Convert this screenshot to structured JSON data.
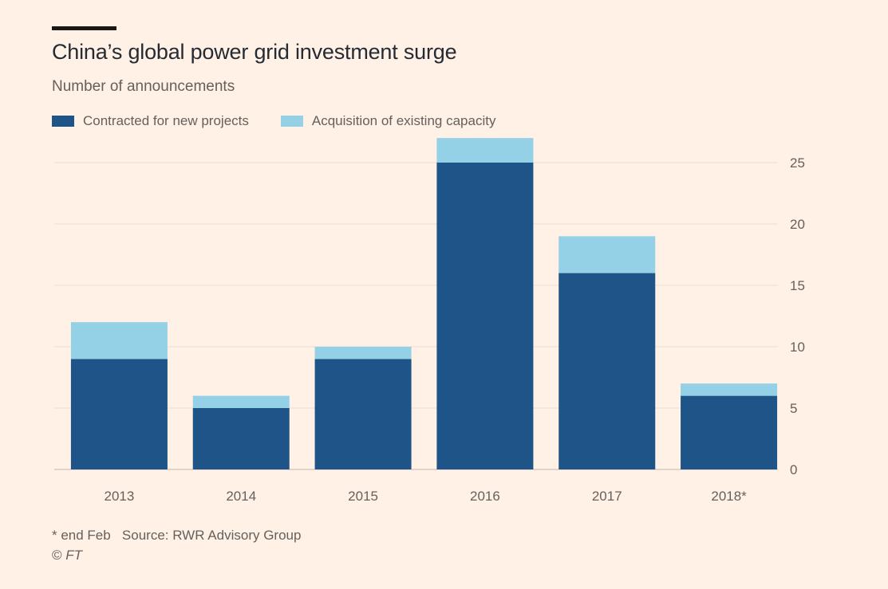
{
  "header": {
    "title": "China’s global power grid investment surge",
    "subtitle": "Number of announcements"
  },
  "footer": {
    "note": "* end Feb",
    "source": "Source: RWR Advisory Group",
    "copyright_symbol": "©",
    "copyright_owner": "FT"
  },
  "colors": {
    "background": "#fff1e5",
    "contracted": "#1f5488",
    "acquisition": "#94d0e6",
    "gridline": "#eadfd6",
    "text": "#66605c"
  },
  "chart_data": {
    "type": "bar",
    "stacked": true,
    "title": "China’s global power grid investment surge",
    "subtitle": "Number of announcements",
    "xlabel": "",
    "ylabel": "Number of announcements",
    "categories": [
      "2013",
      "2014",
      "2015",
      "2016",
      "2017",
      "2018*"
    ],
    "series": [
      {
        "name": "Contracted for new projects",
        "color": "#1f5488",
        "values": [
          9,
          5,
          9,
          25,
          16,
          6
        ]
      },
      {
        "name": "Acquisition of existing capacity",
        "color": "#94d0e6",
        "values": [
          3,
          1,
          1,
          2,
          3,
          1
        ]
      }
    ],
    "ylim": [
      0,
      27
    ],
    "yticks": [
      0,
      5,
      10,
      15,
      20,
      25
    ],
    "y_axis_side": "right",
    "grid": true,
    "legend": "top-left",
    "annotations": [
      "* end Feb"
    ]
  }
}
